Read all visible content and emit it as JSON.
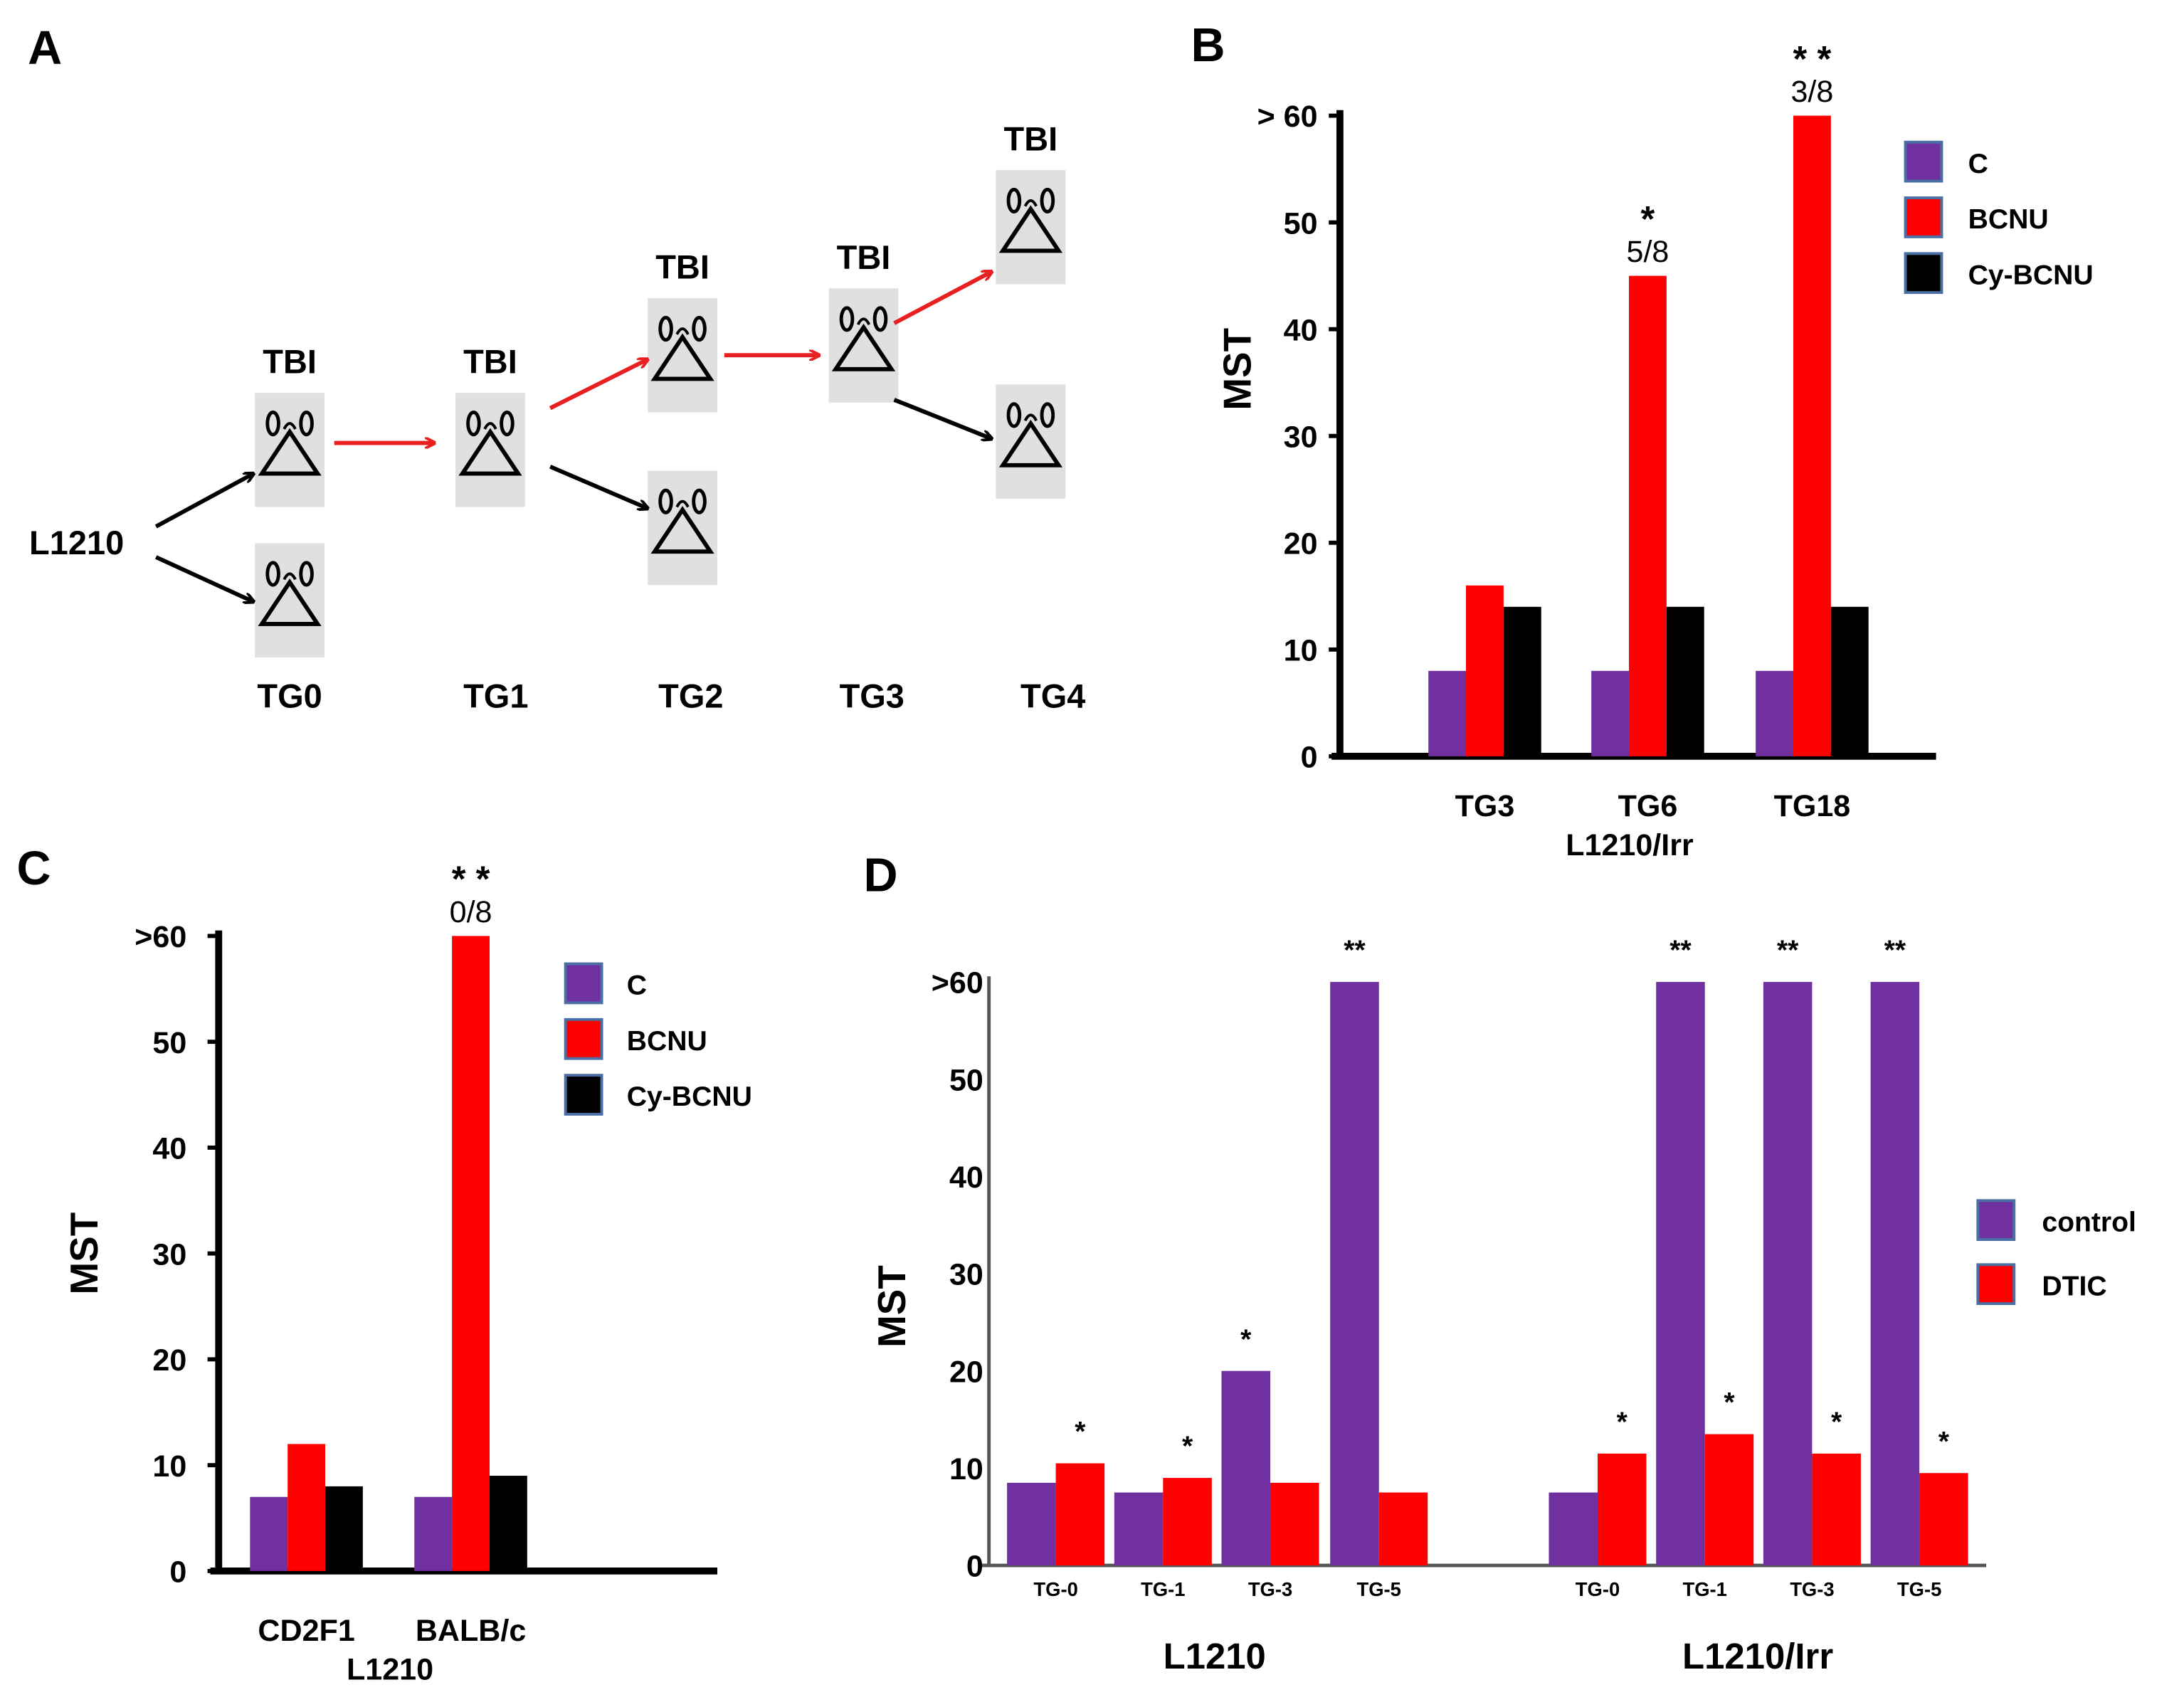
{
  "colors": {
    "C": "#7030a0",
    "BCNU": "#ff0000",
    "CyBCNU": "#000000",
    "control": "#7030a0",
    "DTIC": "#ff0000",
    "red_arrow": "#e82020",
    "box": "#e0e0e0"
  },
  "panelA": {
    "label": "A",
    "source": "L1210",
    "tbi": "TBI",
    "generations": [
      "TG0",
      "TG1",
      "TG2",
      "TG3",
      "TG4"
    ]
  },
  "chart_data": [
    {
      "panel": "B",
      "type": "bar",
      "ylabel": "MST",
      "xlabel": "L1210/Irr",
      "categories": [
        "TG3",
        "TG6",
        "TG18"
      ],
      "ylim": [
        0,
        60
      ],
      "yticks": [
        "0",
        "10",
        "20",
        "30",
        "40",
        "50",
        "> 60"
      ],
      "series": [
        {
          "name": "C",
          "values": [
            8,
            8,
            8
          ]
        },
        {
          "name": "BCNU",
          "values": [
            16,
            45,
            60
          ]
        },
        {
          "name": "Cy-BCNU",
          "values": [
            14,
            14,
            14
          ]
        }
      ],
      "annotations": [
        {
          "category": "TG6",
          "series": "BCNU",
          "stars": "*",
          "text": "5/8"
        },
        {
          "category": "TG18",
          "series": "BCNU",
          "stars": "* *",
          "text": "3/8"
        }
      ],
      "legend": "top-right"
    },
    {
      "panel": "C",
      "type": "bar",
      "ylabel": "MST",
      "xlabel": "L1210",
      "categories": [
        "CD2F1",
        "BALB/c"
      ],
      "ylim": [
        0,
        60
      ],
      "yticks": [
        "0",
        "10",
        "20",
        "30",
        "40",
        "50",
        ">60"
      ],
      "series": [
        {
          "name": "C",
          "values": [
            7,
            7
          ]
        },
        {
          "name": "BCNU",
          "values": [
            12,
            60
          ]
        },
        {
          "name": "Cy-BCNU",
          "values": [
            8,
            9
          ]
        }
      ],
      "annotations": [
        {
          "category": "BALB/c",
          "series": "BCNU",
          "stars": "* *",
          "text": "0/8"
        }
      ],
      "legend": "top-right"
    },
    {
      "panel": "D",
      "type": "bar",
      "ylabel": "MST",
      "groups": [
        {
          "name": "L1210",
          "categories": [
            "TG-0",
            "TG-1",
            "TG-3",
            "TG-5"
          ],
          "control": [
            8.5,
            7.5,
            20,
            60
          ],
          "DTIC": [
            10.5,
            9,
            8.5,
            7.5
          ],
          "control_marks": [
            "",
            "",
            "*",
            "**"
          ],
          "DTIC_marks": [
            "*",
            "*",
            "",
            ""
          ]
        },
        {
          "name": "L1210/Irr",
          "categories": [
            "TG-0",
            "TG-1",
            "TG-3",
            "TG-5"
          ],
          "control": [
            7.5,
            60,
            60,
            60
          ],
          "DTIC": [
            11.5,
            13.5,
            11.5,
            9.5
          ],
          "control_marks": [
            "",
            "**",
            "**",
            "**"
          ],
          "DTIC_marks": [
            "*",
            "*",
            "*",
            "*"
          ]
        }
      ],
      "series_names": [
        "control",
        "DTIC"
      ],
      "ylim": [
        0,
        60
      ],
      "yticks": [
        "0",
        "10",
        "20",
        "30",
        "40",
        "50",
        ">60"
      ],
      "legend": "right"
    }
  ]
}
